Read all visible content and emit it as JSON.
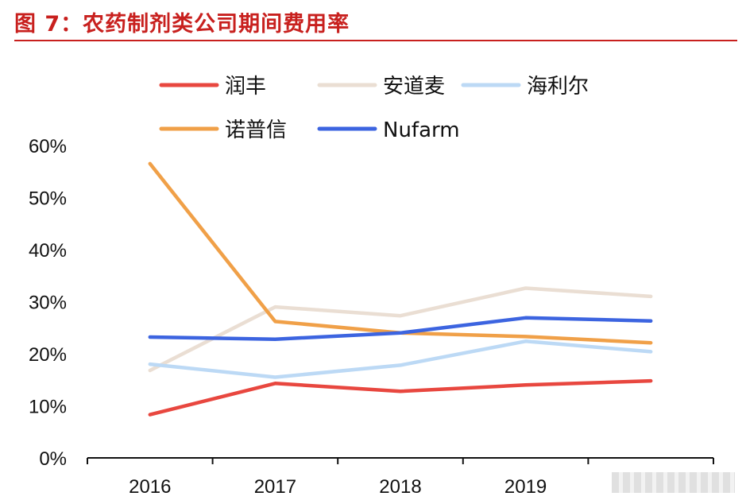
{
  "figure": {
    "title": "图 7：农药制剂类公司期间费用率",
    "title_color": "#c8201e"
  },
  "chart_data": {
    "type": "line",
    "title": "",
    "xlabel": "",
    "ylabel": "",
    "x_tick_labels": [
      "2016",
      "2017",
      "2018",
      "2019",
      ""
    ],
    "y_tick_labels": [
      "0%",
      "10%",
      "20%",
      "30%",
      "40%",
      "50%",
      "60%"
    ],
    "ylim": [
      0,
      60
    ],
    "grid": false,
    "legend_position": "top",
    "series": [
      {
        "name": "润丰",
        "color": "#e8473f",
        "values": [
          8.3,
          14.3,
          12.8,
          14.0,
          14.8
        ]
      },
      {
        "name": "安道麦",
        "color": "#eaded3",
        "values": [
          16.8,
          29.0,
          27.3,
          32.6,
          31.0
        ]
      },
      {
        "name": "海利尔",
        "color": "#bcd9f5",
        "values": [
          18.0,
          15.5,
          17.8,
          22.4,
          20.4
        ]
      },
      {
        "name": "诺普信",
        "color": "#f0a048",
        "values": [
          56.5,
          26.2,
          24.0,
          23.3,
          22.1
        ]
      },
      {
        "name": "Nufarm",
        "color": "#3c64e0",
        "values": [
          23.2,
          22.8,
          24.0,
          26.9,
          26.3
        ]
      }
    ]
  }
}
